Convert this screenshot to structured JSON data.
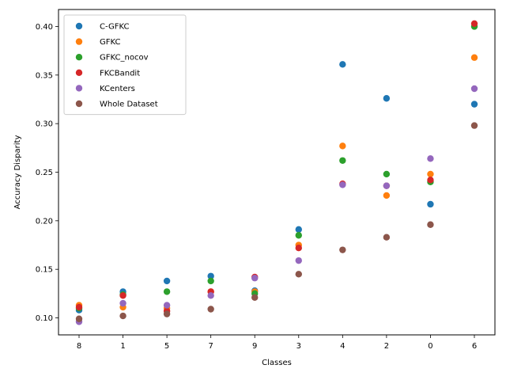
{
  "chart_data": {
    "type": "scatter",
    "title": "",
    "xlabel": "Classes",
    "ylabel": "Accuracy Disparity",
    "categories": [
      "8",
      "1",
      "5",
      "7",
      "9",
      "3",
      "4",
      "2",
      "0",
      "6"
    ],
    "ylim": [
      0.0825,
      0.4175
    ],
    "yticks": [
      0.1,
      0.15,
      0.2,
      0.25,
      0.3,
      0.35,
      0.4
    ],
    "ytick_labels": [
      "0.10",
      "0.15",
      "0.20",
      "0.25",
      "0.30",
      "0.35",
      "0.40"
    ],
    "grid": false,
    "legend_position": "upper-left",
    "series": [
      {
        "name": "C-GFKC",
        "color": "#1f77b4",
        "values": [
          0.108,
          0.127,
          0.138,
          0.143,
          0.128,
          0.191,
          0.361,
          0.326,
          0.217,
          0.32
        ]
      },
      {
        "name": "GFKC",
        "color": "#ff7f0e",
        "values": [
          0.113,
          0.111,
          0.11,
          0.127,
          0.127,
          0.175,
          0.277,
          0.226,
          0.248,
          0.368
        ]
      },
      {
        "name": "GFKC_nocov",
        "color": "#2ca02c",
        "values": [
          0.11,
          0.124,
          0.127,
          0.138,
          0.125,
          0.185,
          0.262,
          0.248,
          0.24,
          0.4
        ]
      },
      {
        "name": "FKCBandit",
        "color": "#d62728",
        "values": [
          0.111,
          0.123,
          0.107,
          0.127,
          0.142,
          0.172,
          0.238,
          0.236,
          0.242,
          0.403
        ]
      },
      {
        "name": "KCenters",
        "color": "#9467bd",
        "values": [
          0.096,
          0.115,
          0.113,
          0.123,
          0.141,
          0.159,
          0.237,
          0.236,
          0.264,
          0.336
        ]
      },
      {
        "name": "Whole Dataset",
        "color": "#8c564b",
        "values": [
          0.099,
          0.102,
          0.104,
          0.109,
          0.121,
          0.145,
          0.17,
          0.183,
          0.196,
          0.298
        ]
      }
    ]
  }
}
